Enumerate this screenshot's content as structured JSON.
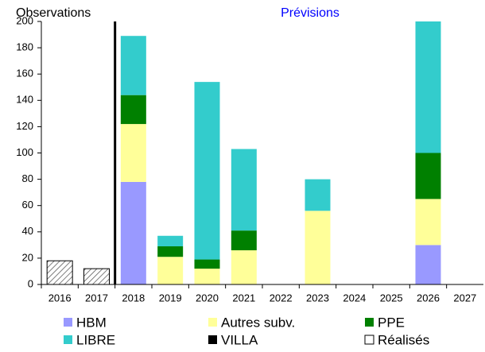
{
  "chart_data": {
    "type": "stacked_bar",
    "annotations": [
      "Observations",
      "Prévisions"
    ],
    "categories": [
      "2016",
      "2017",
      "2018",
      "2019",
      "2020",
      "2021",
      "2022",
      "2023",
      "2024",
      "2025",
      "2026",
      "2027"
    ],
    "series": [
      {
        "name": "HBM",
        "color": "#9999ff",
        "values": [
          0,
          0,
          78,
          0,
          0,
          0,
          0,
          0,
          0,
          0,
          30,
          0
        ]
      },
      {
        "name": "Autres subv.",
        "color": "#ffff99",
        "values": [
          0,
          0,
          44,
          21,
          12,
          26,
          0,
          56,
          0,
          0,
          35,
          0
        ]
      },
      {
        "name": "PPE",
        "color": "#008000",
        "values": [
          0,
          0,
          22,
          8,
          7,
          15,
          0,
          0,
          0,
          0,
          35,
          0
        ]
      },
      {
        "name": "LIBRE",
        "color": "#33cccc",
        "values": [
          0,
          0,
          45,
          8,
          135,
          62,
          0,
          24,
          0,
          0,
          100,
          0
        ]
      },
      {
        "name": "VILLA",
        "color": "#000000",
        "values": [
          0,
          0,
          0,
          0,
          0,
          0,
          0,
          0,
          0,
          0,
          0,
          0
        ]
      },
      {
        "name": "Réalisés",
        "color": "#ffffff",
        "pattern": "hatch",
        "values": [
          18,
          12,
          0,
          0,
          0,
          0,
          0,
          0,
          0,
          0,
          0,
          0
        ]
      }
    ],
    "ylim": [
      0,
      200
    ],
    "yticks": [
      0,
      20,
      40,
      60,
      80,
      100,
      120,
      140,
      160,
      180,
      200
    ],
    "grid": false
  }
}
